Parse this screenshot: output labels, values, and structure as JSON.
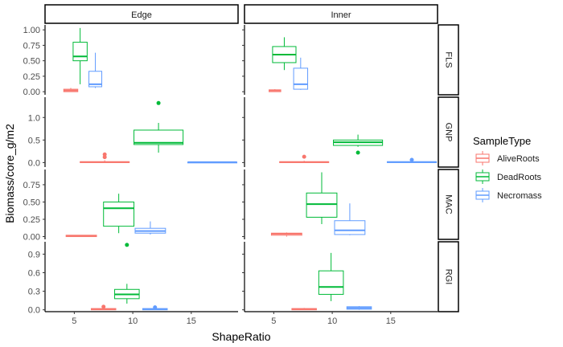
{
  "chart_data": {
    "type": "boxplot",
    "xlabel": "ShapeRatio",
    "ylabel": "Biomass/core_g/m2",
    "x_range": [
      2.5,
      19
    ],
    "x_ticks": [
      5,
      10,
      15
    ],
    "grid": false,
    "legend": {
      "title": "SampleType",
      "position": "right",
      "entries": [
        {
          "name": "AliveRoots",
          "color": "#F8766D"
        },
        {
          "name": "DeadRoots",
          "color": "#00BA38"
        },
        {
          "name": "Necromass",
          "color": "#619CFF"
        }
      ]
    },
    "columns": [
      "Edge",
      "Inner"
    ],
    "rows": [
      {
        "name": "FLS",
        "ylim": [
          -0.05,
          1.08
        ],
        "ticks": [
          0.0,
          0.25,
          0.5,
          0.75,
          1.0
        ],
        "tick_labels": [
          "0.00",
          "0.25",
          "0.50",
          "0.75",
          "1.00"
        ]
      },
      {
        "name": "GNP",
        "ylim": [
          -0.1,
          1.45
        ],
        "ticks": [
          0.0,
          0.5,
          1.0
        ],
        "tick_labels": [
          "0.0",
          "0.5",
          "1.0"
        ]
      },
      {
        "name": "MAC",
        "ylim": [
          -0.04,
          0.97
        ],
        "ticks": [
          0.0,
          0.25,
          0.5,
          0.75
        ],
        "tick_labels": [
          "0.00",
          "0.25",
          "0.50",
          "0.75"
        ]
      },
      {
        "name": "RGI",
        "ylim": [
          -0.03,
          1.1
        ],
        "ticks": [
          0.0,
          0.3,
          0.6,
          0.9
        ],
        "tick_labels": [
          "0.0",
          "0.3",
          "0.6",
          "0.9"
        ]
      }
    ],
    "boxes": [
      {
        "column": "Edge",
        "row": "FLS",
        "series": "AliveRoots",
        "x_center": 4.7,
        "width": 1.2,
        "whisker_low": 0.0,
        "q1": 0.0,
        "median": 0.02,
        "q3": 0.04,
        "whisker_high": 0.06,
        "outliers": []
      },
      {
        "column": "Edge",
        "row": "FLS",
        "series": "DeadRoots",
        "x_center": 5.5,
        "width": 1.2,
        "whisker_low": 0.12,
        "q1": 0.5,
        "median": 0.57,
        "q3": 0.8,
        "whisker_high": 1.03,
        "outliers": []
      },
      {
        "column": "Edge",
        "row": "FLS",
        "series": "Necromass",
        "x_center": 6.8,
        "width": 1.1,
        "whisker_low": 0.06,
        "q1": 0.08,
        "median": 0.12,
        "q3": 0.33,
        "whisker_high": 0.63,
        "outliers": []
      },
      {
        "column": "Inner",
        "row": "FLS",
        "series": "AliveRoots",
        "x_center": 5.1,
        "width": 1.0,
        "whisker_low": 0.0,
        "q1": 0.0,
        "median": 0.02,
        "q3": 0.03,
        "whisker_high": 0.04,
        "outliers": []
      },
      {
        "column": "Inner",
        "row": "FLS",
        "series": "DeadRoots",
        "x_center": 5.9,
        "width": 2.0,
        "whisker_low": 0.35,
        "q1": 0.47,
        "median": 0.6,
        "q3": 0.73,
        "whisker_high": 0.88,
        "outliers": []
      },
      {
        "column": "Inner",
        "row": "FLS",
        "series": "Necromass",
        "x_center": 7.3,
        "width": 1.2,
        "whisker_low": 0.03,
        "q1": 0.04,
        "median": 0.12,
        "q3": 0.38,
        "whisker_high": 0.55,
        "outliers": []
      },
      {
        "column": "Edge",
        "row": "GNP",
        "series": "AliveRoots",
        "x_center": 7.6,
        "width": 4.2,
        "whisker_low": 0.0,
        "q1": 0.0,
        "median": 0.01,
        "q3": 0.02,
        "whisker_high": 0.05,
        "outliers": [
          0.12,
          0.18
        ]
      },
      {
        "column": "Edge",
        "row": "GNP",
        "series": "DeadRoots",
        "x_center": 12.2,
        "width": 4.2,
        "whisker_low": 0.22,
        "q1": 0.4,
        "median": 0.44,
        "q3": 0.72,
        "whisker_high": 0.88,
        "outliers": [
          1.32
        ]
      },
      {
        "column": "Edge",
        "row": "GNP",
        "series": "Necromass",
        "x_center": 16.8,
        "width": 4.2,
        "whisker_low": 0.0,
        "q1": 0.0,
        "median": 0.01,
        "q3": 0.01,
        "whisker_high": 0.02,
        "outliers": []
      },
      {
        "column": "Inner",
        "row": "GNP",
        "series": "AliveRoots",
        "x_center": 7.6,
        "width": 4.2,
        "whisker_low": 0.0,
        "q1": 0.0,
        "median": 0.01,
        "q3": 0.02,
        "whisker_high": 0.04,
        "outliers": [
          0.13
        ]
      },
      {
        "column": "Inner",
        "row": "GNP",
        "series": "DeadRoots",
        "x_center": 12.2,
        "width": 4.2,
        "whisker_low": 0.35,
        "q1": 0.38,
        "median": 0.45,
        "q3": 0.5,
        "whisker_high": 0.62,
        "outliers": [
          0.22
        ]
      },
      {
        "column": "Inner",
        "row": "GNP",
        "series": "Necromass",
        "x_center": 16.8,
        "width": 4.2,
        "whisker_low": 0.0,
        "q1": 0.0,
        "median": 0.01,
        "q3": 0.02,
        "whisker_high": 0.04,
        "outliers": [
          0.06
        ]
      },
      {
        "column": "Edge",
        "row": "MAC",
        "series": "AliveRoots",
        "x_center": 5.6,
        "width": 2.6,
        "whisker_low": 0.0,
        "q1": 0.0,
        "median": 0.01,
        "q3": 0.02,
        "whisker_high": 0.02,
        "outliers": []
      },
      {
        "column": "Edge",
        "row": "MAC",
        "series": "DeadRoots",
        "x_center": 8.8,
        "width": 2.6,
        "whisker_low": 0.05,
        "q1": 0.15,
        "median": 0.41,
        "q3": 0.5,
        "whisker_high": 0.62,
        "outliers": []
      },
      {
        "column": "Edge",
        "row": "MAC",
        "series": "Necromass",
        "x_center": 11.5,
        "width": 2.6,
        "whisker_low": 0.03,
        "q1": 0.05,
        "median": 0.08,
        "q3": 0.12,
        "whisker_high": 0.22,
        "outliers": []
      },
      {
        "column": "Inner",
        "row": "MAC",
        "series": "AliveRoots",
        "x_center": 6.1,
        "width": 2.6,
        "whisker_low": 0.0,
        "q1": 0.02,
        "median": 0.04,
        "q3": 0.05,
        "whisker_high": 0.06,
        "outliers": []
      },
      {
        "column": "Inner",
        "row": "MAC",
        "series": "DeadRoots",
        "x_center": 9.1,
        "width": 2.6,
        "whisker_low": 0.18,
        "q1": 0.28,
        "median": 0.47,
        "q3": 0.63,
        "whisker_high": 0.93,
        "outliers": []
      },
      {
        "column": "Inner",
        "row": "MAC",
        "series": "Necromass",
        "x_center": 11.5,
        "width": 2.6,
        "whisker_low": 0.02,
        "q1": 0.03,
        "median": 0.09,
        "q3": 0.23,
        "whisker_high": 0.48,
        "outliers": []
      },
      {
        "column": "Edge",
        "row": "RGI",
        "series": "AliveRoots",
        "x_center": 7.5,
        "width": 2.1,
        "whisker_low": 0.0,
        "q1": 0.0,
        "median": 0.01,
        "q3": 0.02,
        "whisker_high": 0.03,
        "outliers": [
          0.05
        ]
      },
      {
        "column": "Edge",
        "row": "RGI",
        "series": "DeadRoots",
        "x_center": 9.5,
        "width": 2.1,
        "whisker_low": 0.1,
        "q1": 0.18,
        "median": 0.25,
        "q3": 0.33,
        "whisker_high": 0.42,
        "outliers": [
          1.05
        ]
      },
      {
        "column": "Edge",
        "row": "RGI",
        "series": "Necromass",
        "x_center": 11.9,
        "width": 2.1,
        "whisker_low": 0.0,
        "q1": 0.0,
        "median": 0.01,
        "q3": 0.02,
        "whisker_high": 0.02,
        "outliers": [
          0.04
        ]
      },
      {
        "column": "Inner",
        "row": "RGI",
        "series": "AliveRoots",
        "x_center": 7.6,
        "width": 2.1,
        "whisker_low": 0.0,
        "q1": 0.0,
        "median": 0.01,
        "q3": 0.02,
        "whisker_high": 0.03,
        "outliers": []
      },
      {
        "column": "Inner",
        "row": "RGI",
        "series": "DeadRoots",
        "x_center": 9.9,
        "width": 2.1,
        "whisker_low": 0.14,
        "q1": 0.25,
        "median": 0.37,
        "q3": 0.63,
        "whisker_high": 0.92,
        "outliers": []
      },
      {
        "column": "Inner",
        "row": "RGI",
        "series": "Necromass",
        "x_center": 12.3,
        "width": 2.1,
        "whisker_low": 0.0,
        "q1": 0.01,
        "median": 0.03,
        "q3": 0.05,
        "whisker_high": 0.06,
        "outliers": []
      }
    ]
  }
}
